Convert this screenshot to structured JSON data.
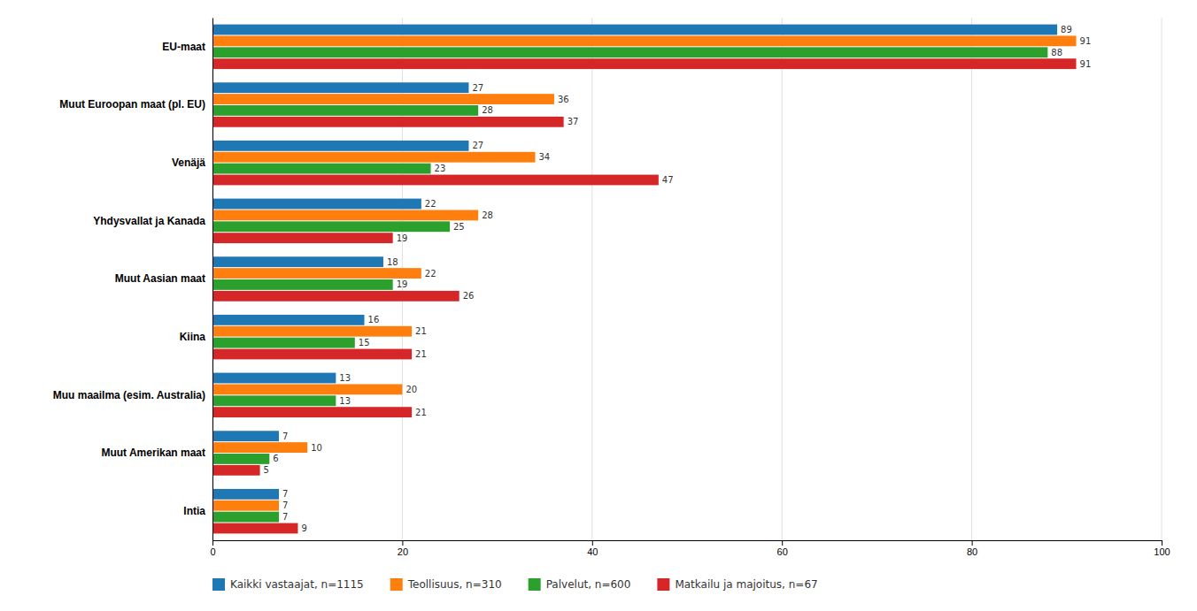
{
  "chart_data": {
    "type": "bar",
    "orientation": "horizontal",
    "categories": [
      "EU-maat",
      "Muut Euroopan maat (pl. EU)",
      "Venäjä",
      "Yhdysvallat ja Kanada",
      "Muut Aasian maat",
      "Kiina",
      "Muu maailma (esim. Australia)",
      "Muut Amerikan maat",
      "Intia"
    ],
    "series": [
      {
        "name": "Kaikki vastaajat, n=1115",
        "values": [
          89,
          27,
          27,
          22,
          18,
          16,
          13,
          7,
          7
        ]
      },
      {
        "name": "Teollisuus, n=310",
        "values": [
          91,
          36,
          34,
          28,
          22,
          21,
          20,
          10,
          7
        ]
      },
      {
        "name": "Palvelut, n=600",
        "values": [
          88,
          28,
          23,
          25,
          19,
          15,
          13,
          6,
          7
        ]
      },
      {
        "name": "Matkailu ja majoitus, n=67",
        "values": [
          91,
          37,
          47,
          19,
          26,
          21,
          21,
          5,
          9
        ]
      }
    ],
    "xlim": [
      0,
      100
    ],
    "xticks": [
      0,
      20,
      40,
      60,
      80,
      100
    ],
    "grid": true,
    "data_labels": true,
    "legend": "bottom"
  }
}
